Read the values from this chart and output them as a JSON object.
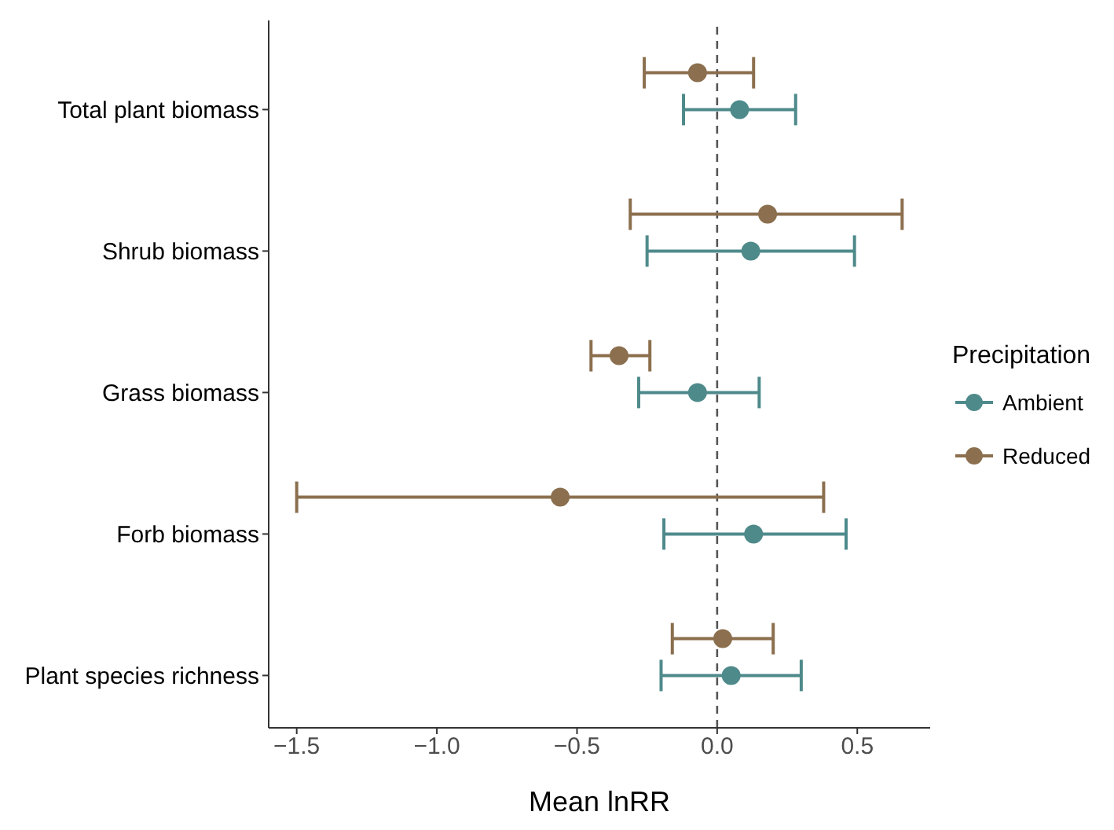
{
  "chart_data": {
    "type": "scatter",
    "xlabel": "Mean lnRR",
    "legend_title": "Precipitation",
    "categories": [
      "Total plant biomass",
      "Shrub biomass",
      "Grass biomass",
      "Forb biomass",
      "Plant species richness"
    ],
    "series": [
      {
        "name": "Ambient",
        "color": "#4f8a8b",
        "values": [
          0.08,
          0.12,
          -0.07,
          0.13,
          0.05
        ],
        "errors": [
          [
            -0.12,
            0.28
          ],
          [
            -0.25,
            0.49
          ],
          [
            -0.28,
            0.15
          ],
          [
            -0.19,
            0.46
          ],
          [
            -0.2,
            0.3
          ]
        ]
      },
      {
        "name": "Reduced",
        "color": "#8b6f4e",
        "values": [
          -0.07,
          0.18,
          -0.35,
          -0.56,
          0.02
        ],
        "errors": [
          [
            -0.26,
            0.13
          ],
          [
            -0.31,
            0.66
          ],
          [
            -0.45,
            -0.24
          ],
          [
            -1.5,
            0.38
          ],
          [
            -0.16,
            0.2
          ]
        ]
      }
    ],
    "orientation": "horizontal",
    "xlim": [
      -1.6,
      0.76
    ],
    "xticks": [
      {
        "value": -1.5,
        "label": "−1.5"
      },
      {
        "value": -1.0,
        "label": "−1.0"
      },
      {
        "value": -0.5,
        "label": "−0.5"
      },
      {
        "value": 0,
        "label": "0.0"
      },
      0.5
    ],
    "ref_lines": [
      {
        "axis": "x",
        "value": 0,
        "line_style": "dashed",
        "color": "#555555"
      }
    ],
    "marker": "circle",
    "grid": false,
    "legend": "right"
  }
}
